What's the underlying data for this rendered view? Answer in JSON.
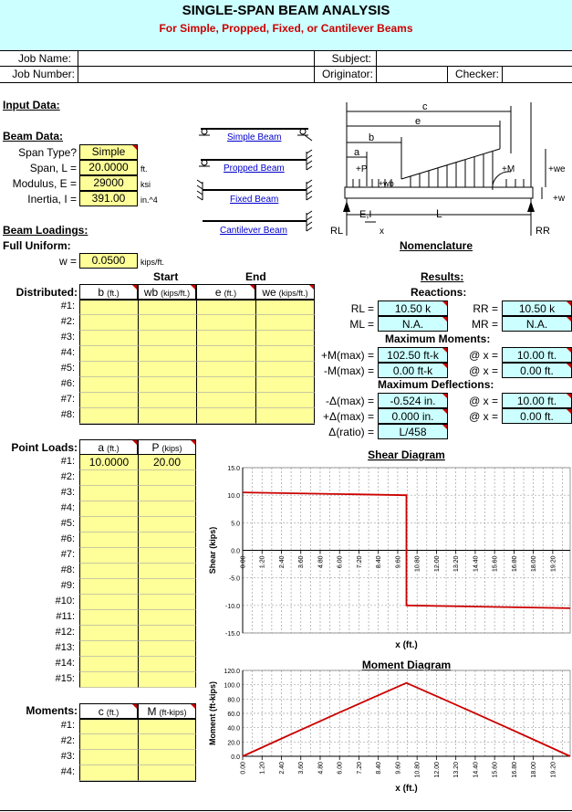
{
  "header": {
    "title": "SINGLE-SPAN BEAM ANALYSIS",
    "subtitle": "For Simple, Propped, Fixed, or Cantilever Beams"
  },
  "info": {
    "job_name_label": "Job Name:",
    "job_number_label": "Job Number:",
    "subject_label": "Subject:",
    "originator_label": "Originator:",
    "checker_label": "Checker:"
  },
  "input": {
    "section_title": "Input Data:",
    "beam_data_title": "Beam Data:",
    "span_type_label": "Span Type?",
    "span_type_value": "Simple",
    "span_label": "Span, L =",
    "span_value": "20.0000",
    "span_unit": "ft.",
    "modulus_label": "Modulus, E =",
    "modulus_value": "29000",
    "modulus_unit": "ksi",
    "inertia_label": "Inertia, I =",
    "inertia_value": "391.00",
    "inertia_unit": "in.^4"
  },
  "beam_links": {
    "simple": "Simple Beam",
    "propped": "Propped Beam",
    "fixed": "Fixed Beam",
    "cantilever": "Cantilever Beam"
  },
  "nomenclature": {
    "title": "Nomenclature",
    "c": "c",
    "e": "e",
    "b": "b",
    "a": "a",
    "P": "+P",
    "wb": "+wb",
    "M": "+M",
    "we": "+we",
    "w": "+w",
    "EI": "E,I",
    "x": "x",
    "L": "L",
    "RL": "RL",
    "RR": "RR"
  },
  "loadings": {
    "title": "Beam Loadings:",
    "full_uniform_label": "Full Uniform:",
    "w_label": "w =",
    "w_value": "0.0500",
    "w_unit": "kips/ft.",
    "start_label": "Start",
    "end_label": "End",
    "distributed_label": "Distributed:",
    "dist_headers": [
      {
        "name": "b",
        "unit": "(ft.)"
      },
      {
        "name": "wb",
        "unit": "(kips/ft.)"
      },
      {
        "name": "e",
        "unit": "(ft.)"
      },
      {
        "name": "we",
        "unit": "(kips/ft.)"
      }
    ],
    "dist_rows": [
      "#1:",
      "#2:",
      "#3:",
      "#4:",
      "#5:",
      "#6:",
      "#7:",
      "#8:"
    ],
    "point_label": "Point Loads:",
    "point_headers": [
      {
        "name": "a",
        "unit": "(ft.)"
      },
      {
        "name": "P",
        "unit": "(kips)"
      }
    ],
    "point_rows": [
      "#1:",
      "#2:",
      "#3:",
      "#4:",
      "#5:",
      "#6:",
      "#7:",
      "#8:",
      "#9:",
      "#10:",
      "#11:",
      "#12:",
      "#13:",
      "#14:",
      "#15:"
    ],
    "point_values": [
      {
        "a": "10.0000",
        "P": "20.00"
      }
    ],
    "moment_label": "Moments:",
    "moment_headers": [
      {
        "name": "c",
        "unit": "(ft.)"
      },
      {
        "name": "M",
        "unit": "(ft-kips)"
      }
    ],
    "moment_rows": [
      "#1:",
      "#2:",
      "#3:",
      "#4:"
    ]
  },
  "results": {
    "title": "Results:",
    "reactions_title": "Reactions:",
    "rl_label": "RL =",
    "rl_value": "10.50 k",
    "rr_label": "RR =",
    "rr_value": "10.50 k",
    "ml_label": "ML =",
    "ml_value": "N.A.",
    "mr_label": "MR =",
    "mr_value": "N.A.",
    "max_moments_title": "Maximum Moments:",
    "pos_m_label": "+M(max) =",
    "pos_m_value": "102.50 ft-k",
    "pos_m_x_label": "@ x =",
    "pos_m_x_value": "10.00 ft.",
    "neg_m_label": "-M(max) =",
    "neg_m_value": "0.00 ft-k",
    "neg_m_x_label": "@ x =",
    "neg_m_x_value": "0.00 ft.",
    "max_defl_title": "Maximum Deflections:",
    "neg_d_label": "-Δ(max) =",
    "neg_d_value": "-0.524 in.",
    "neg_d_x_label": "@ x =",
    "neg_d_x_value": "10.00 ft.",
    "pos_d_label": "+Δ(max) =",
    "pos_d_value": "0.000 in.",
    "pos_d_x_label": "@ x =",
    "pos_d_x_value": "0.00 ft.",
    "ratio_label": "Δ(ratio) =",
    "ratio_value": "L/458"
  },
  "chart_data": [
    {
      "type": "line",
      "title": "Shear Diagram",
      "xlabel": "x (ft.)",
      "ylabel": "Shear (kips)",
      "xlim": [
        0,
        20
      ],
      "ylim": [
        -15,
        15
      ],
      "yticks": [
        "15.0",
        "10.0",
        "5.0",
        "0.0",
        "-5.0",
        "-10.0",
        "-15.0"
      ],
      "xticks": [
        "0.00",
        "1.20",
        "2.40",
        "3.60",
        "4.80",
        "6.00",
        "7.20",
        "8.40",
        "9.60",
        "10.80",
        "12.00",
        "13.20",
        "14.40",
        "15.60",
        "16.80",
        "18.00",
        "19.20"
      ],
      "grid": true,
      "series": [
        {
          "color": "#cc0000",
          "x": [
            0,
            10,
            10,
            20
          ],
          "y": [
            10.5,
            10.0,
            -10.0,
            -10.5
          ]
        }
      ]
    },
    {
      "type": "line",
      "title": "Moment Diagram",
      "xlabel": "x (ft.)",
      "ylabel": "Moment (ft-kips)",
      "xlim": [
        0,
        20
      ],
      "ylim": [
        0,
        120
      ],
      "yticks": [
        "120.0",
        "100.0",
        "80.0",
        "60.0",
        "40.0",
        "20.0",
        "0.0"
      ],
      "xticks": [
        "0.00",
        "1.20",
        "2.40",
        "3.60",
        "4.80",
        "6.00",
        "7.20",
        "8.40",
        "9.60",
        "10.80",
        "12.00",
        "13.20",
        "14.40",
        "15.60",
        "16.80",
        "18.00",
        "19.20"
      ],
      "grid": true,
      "series": [
        {
          "color": "#cc0000",
          "x": [
            0,
            2,
            4,
            6,
            8,
            10,
            12,
            14,
            16,
            18,
            20
          ],
          "y": [
            0,
            20.9,
            41.6,
            62.1,
            82.4,
            102.5,
            82.4,
            62.1,
            41.6,
            20.9,
            0
          ]
        }
      ]
    }
  ]
}
